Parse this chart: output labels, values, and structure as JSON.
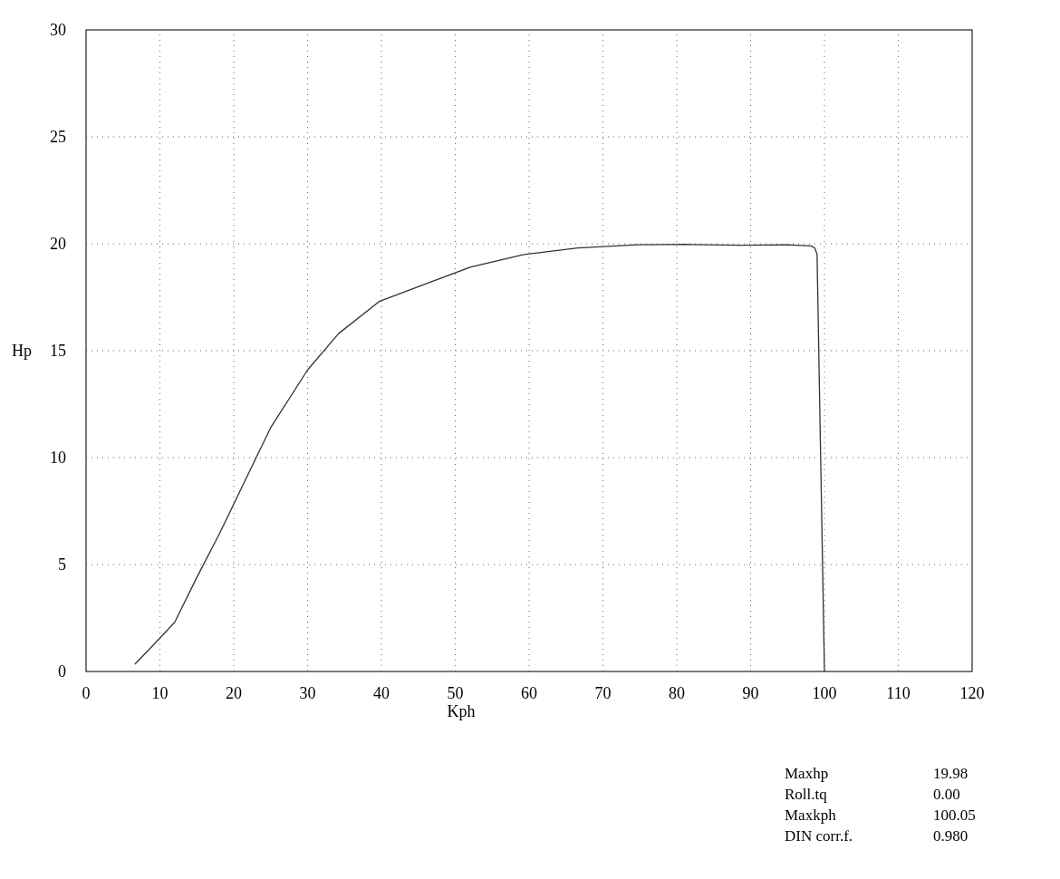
{
  "chart_data": {
    "type": "line",
    "xlabel": "Kph",
    "ylabel": "Hp",
    "x": [
      6.6,
      9,
      12,
      15,
      18,
      20.8,
      25,
      30,
      34.2,
      39.7,
      45.8,
      52,
      59.3,
      66.6,
      74.6,
      81.3,
      88.6,
      95,
      98.2,
      98.7,
      99,
      100
    ],
    "series": [
      {
        "color": "#333333",
        "values": [
          0.34,
          1.2,
          2.3,
          4.4,
          6.4,
          8.4,
          11.4,
          14.1,
          15.8,
          17.3,
          18.1,
          18.9,
          19.5,
          19.8,
          19.95,
          19.97,
          19.93,
          19.95,
          19.9,
          19.8,
          19.5,
          0
        ]
      }
    ],
    "xlim": [
      0,
      120
    ],
    "xticks": [
      0,
      10,
      20,
      30,
      40,
      50,
      60,
      70,
      80,
      90,
      100,
      110,
      120
    ],
    "ylim": [
      0,
      30
    ],
    "yticks": [
      0,
      5,
      10,
      15,
      20,
      25,
      30
    ],
    "grid": true,
    "line_style": "solid",
    "annotations": [
      "Maxhp 19.98",
      "Roll.tq 0.00",
      "Maxkph 100.05",
      "DIN corr.f. 0.980"
    ]
  }
}
